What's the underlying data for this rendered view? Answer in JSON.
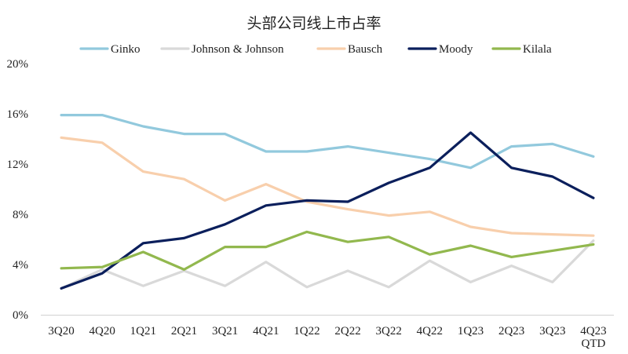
{
  "chart_data": {
    "type": "line",
    "title": "头部公司线上市占率",
    "xlabel": "",
    "ylabel": "",
    "categories": [
      "3Q20",
      "4Q20",
      "1Q21",
      "2Q21",
      "3Q21",
      "4Q21",
      "1Q22",
      "2Q22",
      "3Q22",
      "4Q22",
      "1Q23",
      "2Q23",
      "3Q23",
      "4Q23 QTD"
    ],
    "y_ticks": [
      "0%",
      "4%",
      "8%",
      "12%",
      "16%",
      "20%"
    ],
    "ylim": [
      0,
      20
    ],
    "grid": false,
    "legend_position": "top",
    "series": [
      {
        "name": "Ginko",
        "color": "#92c9dd",
        "values": [
          15.9,
          15.9,
          15.0,
          14.4,
          14.4,
          13.0,
          13.0,
          13.4,
          12.9,
          12.4,
          11.7,
          13.4,
          13.6,
          12.6
        ]
      },
      {
        "name": "Johnson & Johnson",
        "color": "#d9d9d9",
        "values": [
          2.1,
          3.6,
          2.3,
          3.5,
          2.3,
          4.2,
          2.2,
          3.5,
          2.2,
          4.3,
          2.6,
          3.9,
          2.6,
          5.9
        ]
      },
      {
        "name": "Bausch",
        "color": "#f8cfac",
        "values": [
          14.1,
          13.7,
          11.4,
          10.8,
          9.1,
          10.4,
          9.0,
          8.4,
          7.9,
          8.2,
          7.0,
          6.5,
          6.4,
          6.3
        ]
      },
      {
        "name": "Moody",
        "color": "#0b1f5c",
        "values": [
          2.1,
          3.3,
          5.7,
          6.1,
          7.2,
          8.7,
          9.1,
          9.0,
          10.5,
          11.7,
          14.5,
          11.7,
          11.0,
          9.3
        ]
      },
      {
        "name": "Kilala",
        "color": "#92b84e",
        "values": [
          3.7,
          3.8,
          5.0,
          3.6,
          5.4,
          5.4,
          6.6,
          5.8,
          6.2,
          4.8,
          5.5,
          4.6,
          5.1,
          5.6
        ]
      }
    ]
  }
}
